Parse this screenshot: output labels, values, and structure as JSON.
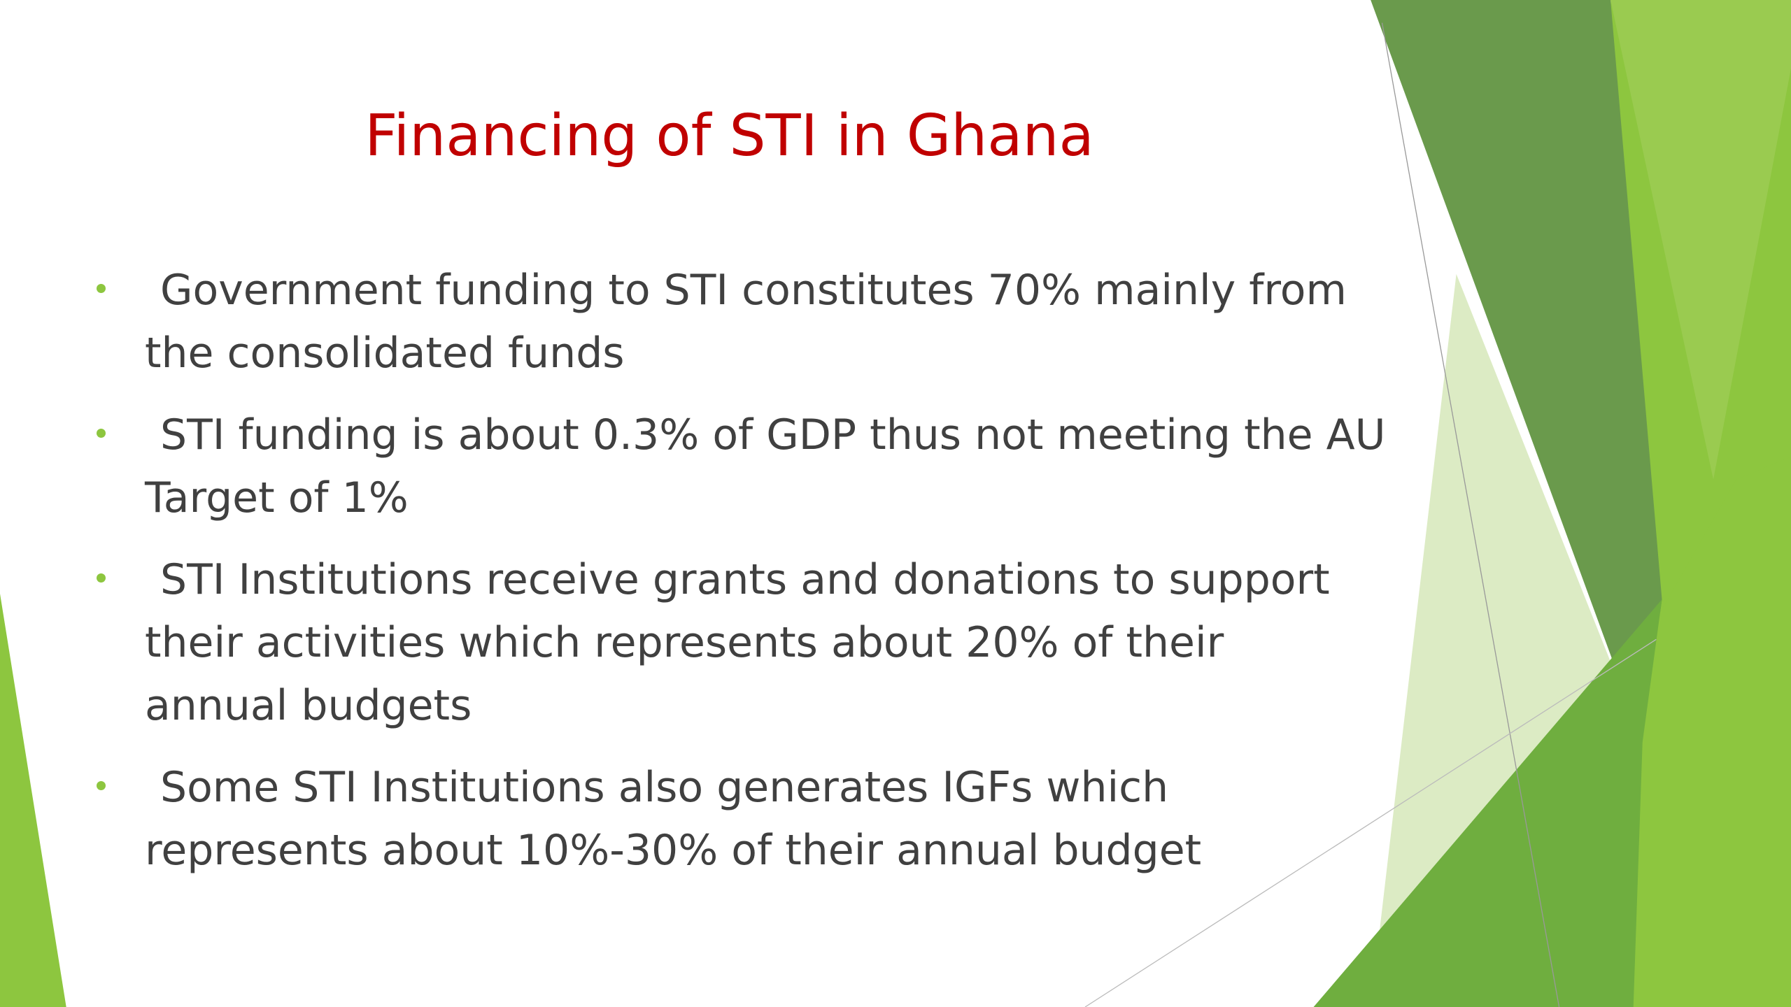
{
  "title": "Financing of STI in Ghana",
  "bullets": [
    {
      "lines": [
        "Government funding to STI constitutes 70% mainly from",
        "the consolidated funds"
      ]
    },
    {
      "lines": [
        "STI funding is about 0.3% of GDP thus not meeting the AU",
        "Target of 1%"
      ]
    },
    {
      "lines": [
        "STI Institutions receive grants and donations to support",
        "their activities which represents about  20% of their",
        "annual budgets"
      ]
    },
    {
      "lines": [
        "Some STI Institutions also generates IGFs which",
        "represents about 10%-30% of their annual budget"
      ]
    }
  ]
}
